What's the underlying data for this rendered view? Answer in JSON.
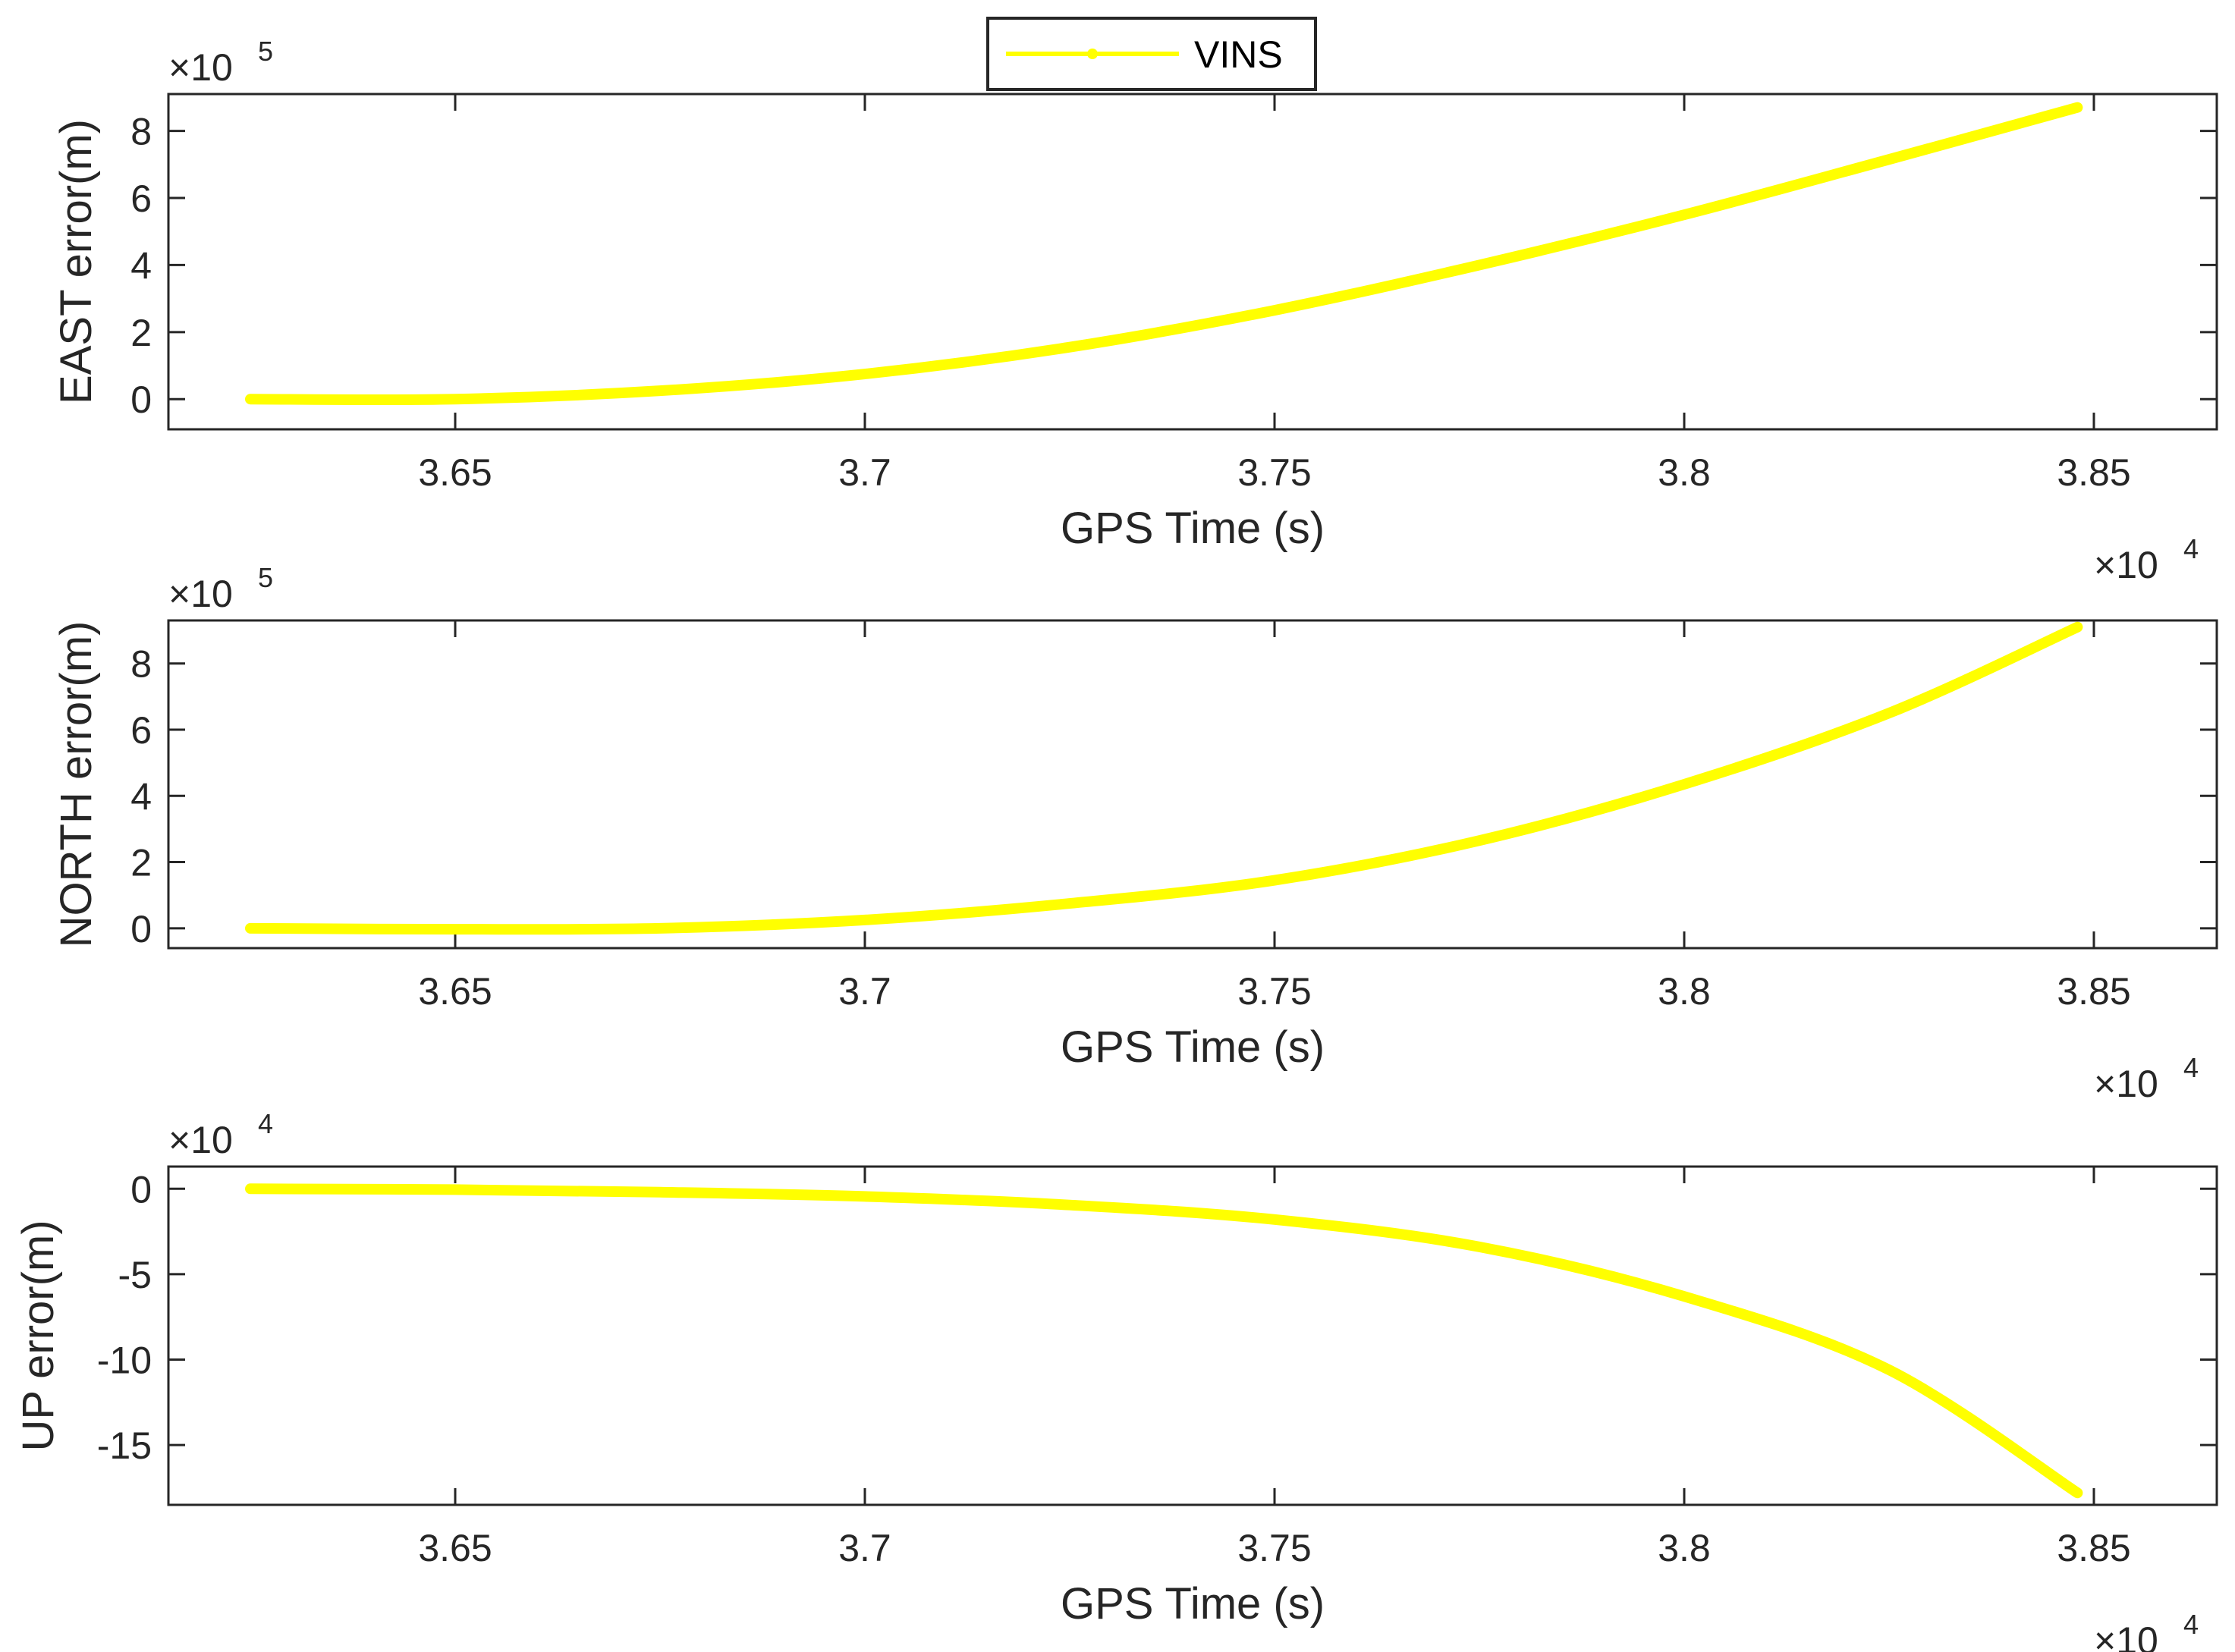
{
  "legend": {
    "label": "VINS",
    "color": "#ffff00",
    "location": "top-center"
  },
  "chart_data": [
    {
      "type": "line",
      "name": "east",
      "xlabel": "GPS Time (s)",
      "ylabel": "EAST error(m)",
      "x_multiplier": "×10",
      "x_exponent": "4",
      "y_multiplier": "×10",
      "y_exponent": "5",
      "xlim": [
        3.615,
        3.865
      ],
      "ylim": [
        -0.9,
        9.1
      ],
      "x_ticks": [
        3.65,
        3.7,
        3.75,
        3.8,
        3.85
      ],
      "x_tick_labels": [
        "3.65",
        "3.7",
        "3.75",
        "3.8",
        "3.85"
      ],
      "y_ticks": [
        0,
        2,
        4,
        6,
        8
      ],
      "y_tick_labels": [
        "0",
        "2",
        "4",
        "6",
        "8"
      ],
      "grid": true,
      "series": [
        {
          "name": "VINS",
          "color": "#ffff00",
          "x": [
            3.625,
            3.65,
            3.675,
            3.7,
            3.725,
            3.75,
            3.775,
            3.8,
            3.825,
            3.848
          ],
          "values": [
            0.0,
            0.0,
            0.25,
            0.75,
            1.55,
            2.65,
            4.0,
            5.5,
            7.15,
            8.7
          ]
        }
      ]
    },
    {
      "type": "line",
      "name": "north",
      "xlabel": "GPS Time (s)",
      "ylabel": "NORTH error(m)",
      "x_multiplier": "×10",
      "x_exponent": "4",
      "y_multiplier": "×10",
      "y_exponent": "5",
      "xlim": [
        3.615,
        3.865
      ],
      "ylim": [
        -0.6,
        9.3
      ],
      "x_ticks": [
        3.65,
        3.7,
        3.75,
        3.8,
        3.85
      ],
      "x_tick_labels": [
        "3.65",
        "3.7",
        "3.75",
        "3.8",
        "3.85"
      ],
      "y_ticks": [
        0,
        2,
        4,
        6,
        8
      ],
      "y_tick_labels": [
        "0",
        "2",
        "4",
        "6",
        "8"
      ],
      "grid": true,
      "series": [
        {
          "name": "VINS",
          "color": "#ffff00",
          "x": [
            3.625,
            3.65,
            3.675,
            3.7,
            3.725,
            3.75,
            3.775,
            3.8,
            3.825,
            3.848
          ],
          "values": [
            0.0,
            -0.03,
            0.0,
            0.25,
            0.75,
            1.45,
            2.65,
            4.35,
            6.5,
            9.1
          ]
        }
      ]
    },
    {
      "type": "line",
      "name": "up",
      "xlabel": "GPS Time (s)",
      "ylabel": "UP error(m)",
      "x_multiplier": "×10",
      "x_exponent": "4",
      "y_multiplier": "×10",
      "y_exponent": "4",
      "xlim": [
        3.615,
        3.865
      ],
      "ylim": [
        -18.5,
        1.3
      ],
      "x_ticks": [
        3.65,
        3.7,
        3.75,
        3.8,
        3.85
      ],
      "x_tick_labels": [
        "3.65",
        "3.7",
        "3.75",
        "3.8",
        "3.85"
      ],
      "y_ticks": [
        0,
        -5,
        -10,
        -15
      ],
      "y_tick_labels": [
        "0",
        "-5",
        "-10",
        "-15"
      ],
      "grid": true,
      "series": [
        {
          "name": "VINS",
          "color": "#ffff00",
          "x": [
            3.625,
            3.65,
            3.675,
            3.7,
            3.725,
            3.75,
            3.775,
            3.8,
            3.825,
            3.848
          ],
          "values": [
            0.0,
            -0.05,
            -0.2,
            -0.45,
            -0.95,
            -1.8,
            -3.4,
            -6.3,
            -10.6,
            -17.8
          ]
        }
      ]
    }
  ]
}
